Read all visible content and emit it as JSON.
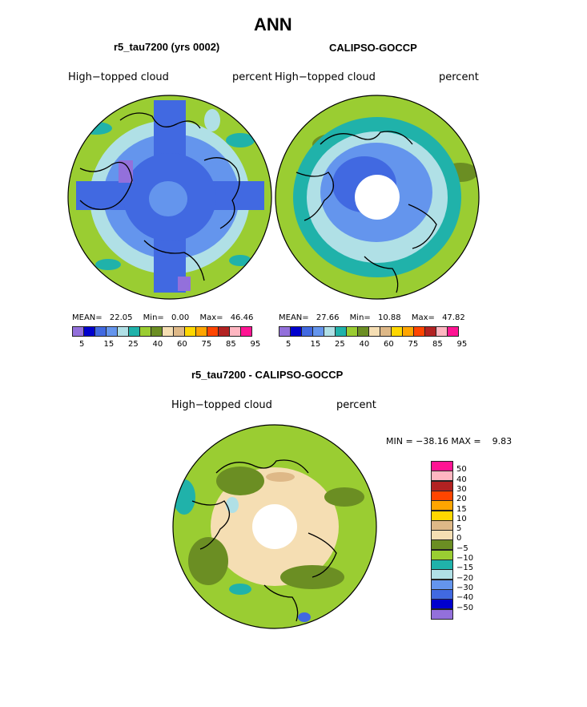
{
  "title": "ANN",
  "panels": [
    {
      "subtitle": "r5_tau7200 (yrs 0002)",
      "left_label": "High−topped cloud",
      "right_label": "percent",
      "stats": {
        "mean_label": "MEAN=",
        "mean": "22.05",
        "min_label": "Min=",
        "min": "0.00",
        "max_label": "Max=",
        "max": "46.46"
      }
    },
    {
      "subtitle": "CALIPSO-GOCCP",
      "left_label": "High−topped cloud",
      "right_label": "percent",
      "stats": {
        "mean_label": "MEAN=",
        "mean": "27.66",
        "min_label": "Min=",
        "min": "10.88",
        "max_label": "Max=",
        "max": "47.82"
      }
    }
  ],
  "top_colorbar": {
    "colors": [
      "#9370db",
      "#0000cd",
      "#4169e1",
      "#6495ed",
      "#b0e0e6",
      "#20b2aa",
      "#9acd32",
      "#6b8e23",
      "#f5deb3",
      "#deb887",
      "#ffd700",
      "#ffa500",
      "#ff4500",
      "#b22222",
      "#ffb6c1",
      "#ff1493"
    ],
    "tick_labels": [
      "5",
      "15",
      "25",
      "40",
      "60",
      "75",
      "85",
      "95"
    ]
  },
  "diff": {
    "title": "r5_tau7200 - CALIPSO-GOCCP",
    "left_label": "High−topped cloud",
    "right_label": "percent",
    "minmax_text": "MIN = −38.16 MAX =    9.83",
    "colorbar": {
      "colors": [
        "#9370db",
        "#0000cd",
        "#4169e1",
        "#6495ed",
        "#b0e0e6",
        "#20b2aa",
        "#9acd32",
        "#6b8e23",
        "#f5deb3",
        "#deb887",
        "#ffd700",
        "#ffa500",
        "#ff4500",
        "#b22222",
        "#ffb6c1",
        "#ff1493"
      ],
      "tick_labels": [
        "−50",
        "−40",
        "−30",
        "−20",
        "−15",
        "−10",
        "−5",
        "0",
        "5",
        "10",
        "15",
        "20",
        "30",
        "40",
        "50"
      ]
    }
  }
}
